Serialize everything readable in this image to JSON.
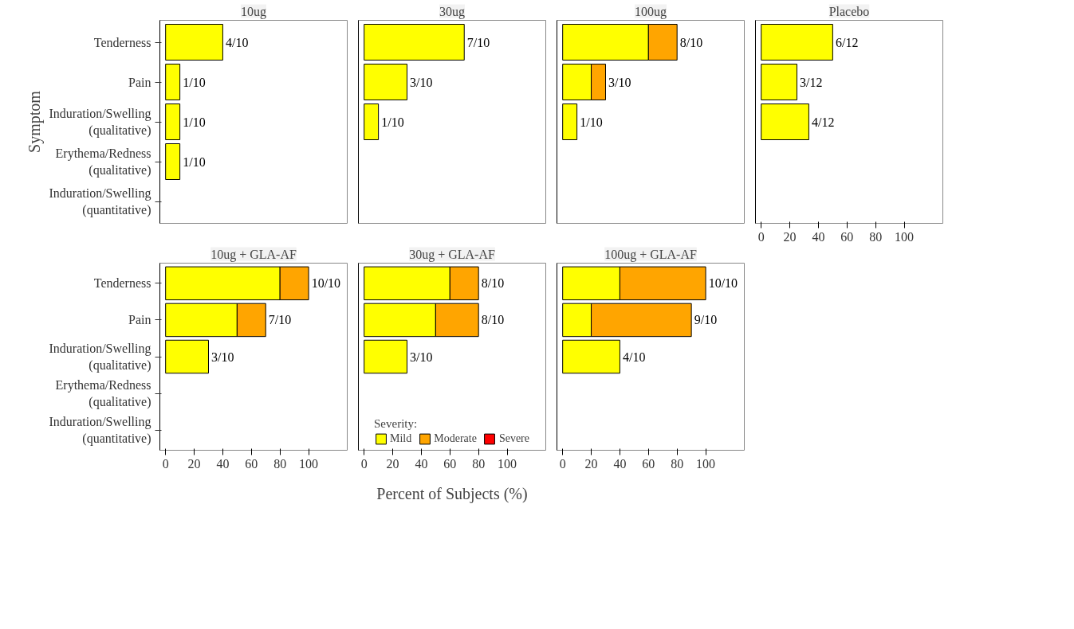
{
  "chart_data": [
    {
      "type": "bar",
      "orientation": "horizontal",
      "stacked": true,
      "title": "10ug",
      "ylabel": "Symptom",
      "categories": [
        "Tenderness",
        "Pain",
        "Induration/Swelling\n(qualitative)",
        "Erythema/Redness\n(qualitative)",
        "Induration/Swelling\n(quantitative)"
      ],
      "xlim": [
        -4,
        127
      ],
      "xticks": [
        0,
        20,
        40,
        60,
        80,
        100
      ],
      "tick_labels": "y",
      "series": [
        {
          "color": "#ffff00",
          "values": [
            40,
            10,
            10,
            10,
            null
          ]
        },
        {
          "color": "#ffa500",
          "values": [
            null,
            null,
            null,
            null,
            null
          ]
        },
        {
          "color": "#ff0000",
          "values": [
            null,
            null,
            null,
            null,
            null
          ]
        }
      ],
      "annotations": [
        {
          "text": "4/10",
          "x": 40,
          "y": "Tenderness"
        },
        {
          "text": "1/10",
          "x": 10,
          "y": "Pain"
        },
        {
          "text": "1/10",
          "x": 10,
          "y": "Induration/Swelling\n(qualitative)"
        },
        {
          "text": "1/10",
          "x": 10,
          "y": "Erythema/Redness\n(qualitative)"
        }
      ]
    },
    {
      "type": "bar",
      "orientation": "horizontal",
      "stacked": true,
      "title": "30ug",
      "categories": [
        "Tenderness",
        "Pain",
        "Induration/Swelling\n(qualitative)",
        "Erythema/Redness\n(qualitative)",
        "Induration/Swelling\n(quantitative)"
      ],
      "xlim": [
        -4,
        127
      ],
      "xticks": [
        0,
        20,
        40,
        60,
        80,
        100
      ],
      "tick_labels": false,
      "series": [
        {
          "color": "#ffff00",
          "values": [
            70,
            30,
            10,
            null,
            null
          ]
        },
        {
          "color": "#ffa500",
          "values": [
            null,
            null,
            null,
            null,
            null
          ]
        },
        {
          "color": "#ff0000",
          "values": [
            null,
            null,
            null,
            null,
            null
          ]
        }
      ],
      "annotations": [
        {
          "text": "7/10",
          "x": 70,
          "y": "Tenderness"
        },
        {
          "text": "3/10",
          "x": 30,
          "y": "Pain"
        },
        {
          "text": "1/10",
          "x": 10,
          "y": "Induration/Swelling\n(qualitative)"
        }
      ]
    },
    {
      "type": "bar",
      "orientation": "horizontal",
      "stacked": true,
      "title": "100ug",
      "categories": [
        "Tenderness",
        "Pain",
        "Induration/Swelling\n(qualitative)",
        "Erythema/Redness\n(qualitative)",
        "Induration/Swelling\n(quantitative)"
      ],
      "xlim": [
        -4,
        127
      ],
      "xticks": [
        0,
        20,
        40,
        60,
        80,
        100
      ],
      "tick_labels": false,
      "series": [
        {
          "color": "#ffff00",
          "values": [
            60,
            20,
            10,
            null,
            null
          ]
        },
        {
          "color": "#ffa500",
          "values": [
            20,
            10,
            null,
            null,
            null
          ]
        },
        {
          "color": "#ff0000",
          "values": [
            null,
            null,
            null,
            null,
            null
          ]
        }
      ],
      "annotations": [
        {
          "text": "8/10",
          "x": 80,
          "y": "Tenderness"
        },
        {
          "text": "3/10",
          "x": 30,
          "y": "Pain"
        },
        {
          "text": "1/10",
          "x": 10,
          "y": "Induration/Swelling\n(qualitative)"
        }
      ]
    },
    {
      "type": "bar",
      "orientation": "horizontal",
      "stacked": true,
      "title": "Placebo",
      "categories": [
        "Tenderness",
        "Pain",
        "Induration/Swelling\n(qualitative)",
        "Erythema/Redness\n(qualitative)",
        "Induration/Swelling\n(quantitative)"
      ],
      "xlim": [
        -4,
        127
      ],
      "xticks": [
        0,
        20,
        40,
        60,
        80,
        100
      ],
      "tick_labels": "x",
      "series": [
        {
          "color": "#ffff00",
          "values": [
            50,
            25,
            33.3,
            null,
            null
          ]
        },
        {
          "color": "#ffa500",
          "values": [
            null,
            null,
            null,
            null,
            null
          ]
        },
        {
          "color": "#ff0000",
          "values": [
            null,
            null,
            null,
            null,
            null
          ]
        }
      ],
      "annotations": [
        {
          "text": "6/12",
          "x": 50,
          "y": "Tenderness"
        },
        {
          "text": "3/12",
          "x": 25,
          "y": "Pain"
        },
        {
          "text": "4/12",
          "x": 33.3,
          "y": "Induration/Swelling\n(qualitative)"
        }
      ]
    },
    {
      "type": "bar",
      "orientation": "horizontal",
      "stacked": true,
      "title": "10ug + GLA-AF",
      "categories": [
        "Tenderness",
        "Pain",
        "Induration/Swelling\n(qualitative)",
        "Erythema/Redness\n(qualitative)",
        "Induration/Swelling\n(quantitative)"
      ],
      "xlim": [
        -4,
        127
      ],
      "xticks": [
        0,
        20,
        40,
        60,
        80,
        100
      ],
      "series": [
        {
          "color": "#ffff00",
          "values": [
            80,
            50,
            30,
            null,
            null
          ]
        },
        {
          "color": "#ffa500",
          "values": [
            20,
            20,
            null,
            null,
            null
          ]
        },
        {
          "color": "#ff0000",
          "values": [
            null,
            null,
            null,
            null,
            null
          ]
        }
      ],
      "annotations": [
        {
          "text": "10/10",
          "x": 100,
          "y": "Tenderness"
        },
        {
          "text": "7/10",
          "x": 70,
          "y": "Pain"
        },
        {
          "text": "3/10",
          "x": 30,
          "y": "Induration/Swelling\n(qualitative)"
        }
      ]
    },
    {
      "type": "bar",
      "orientation": "horizontal",
      "stacked": true,
      "title": "30ug + GLA-AF",
      "xlabel": "Percent of Subjects (%)",
      "legend": "bottom",
      "legend_title": "Severity:",
      "categories": [
        "Tenderness",
        "Pain",
        "Induration/Swelling\n(qualitative)",
        "Erythema/Redness\n(qualitative)",
        "Induration/Swelling\n(quantitative)"
      ],
      "xlim": [
        -4,
        127
      ],
      "xticks": [
        0,
        20,
        40,
        60,
        80,
        100
      ],
      "tick_labels": "x",
      "series": [
        {
          "name": "Mild",
          "color": "#ffff00",
          "values": [
            60,
            50,
            30,
            null,
            null
          ]
        },
        {
          "name": "Moderate",
          "color": "#ffa500",
          "values": [
            20,
            30,
            null,
            null,
            null
          ]
        },
        {
          "name": "Severe",
          "color": "#ff0000",
          "values": [
            null,
            null,
            null,
            null,
            null
          ]
        }
      ],
      "annotations": [
        {
          "text": "8/10",
          "x": 80,
          "y": "Tenderness"
        },
        {
          "text": "8/10",
          "x": 80,
          "y": "Pain"
        },
        {
          "text": "3/10",
          "x": 30,
          "y": "Induration/Swelling\n(qualitative)"
        }
      ]
    },
    {
      "type": "bar",
      "orientation": "horizontal",
      "stacked": true,
      "title": "100ug + GLA-AF",
      "categories": [
        "Tenderness",
        "Pain",
        "Induration/Swelling\n(qualitative)",
        "Erythema/Redness\n(qualitative)",
        "Induration/Swelling\n(quantitative)"
      ],
      "xlim": [
        -4,
        127
      ],
      "xticks": [
        0,
        20,
        40,
        60,
        80,
        100
      ],
      "tick_labels": "x",
      "series": [
        {
          "color": "#ffff00",
          "values": [
            40,
            20,
            40,
            null,
            null
          ]
        },
        {
          "color": "#ffa500",
          "values": [
            60,
            70,
            null,
            null,
            null
          ]
        },
        {
          "color": "#ff0000",
          "values": [
            null,
            null,
            null,
            null,
            null
          ]
        }
      ],
      "annotations": [
        {
          "text": "10/10",
          "x": 100,
          "y": "Tenderness"
        },
        {
          "text": "9/10",
          "x": 90,
          "y": "Pain"
        },
        {
          "text": "4/10",
          "x": 40,
          "y": "Induration/Swelling\n(qualitative)"
        }
      ]
    }
  ]
}
